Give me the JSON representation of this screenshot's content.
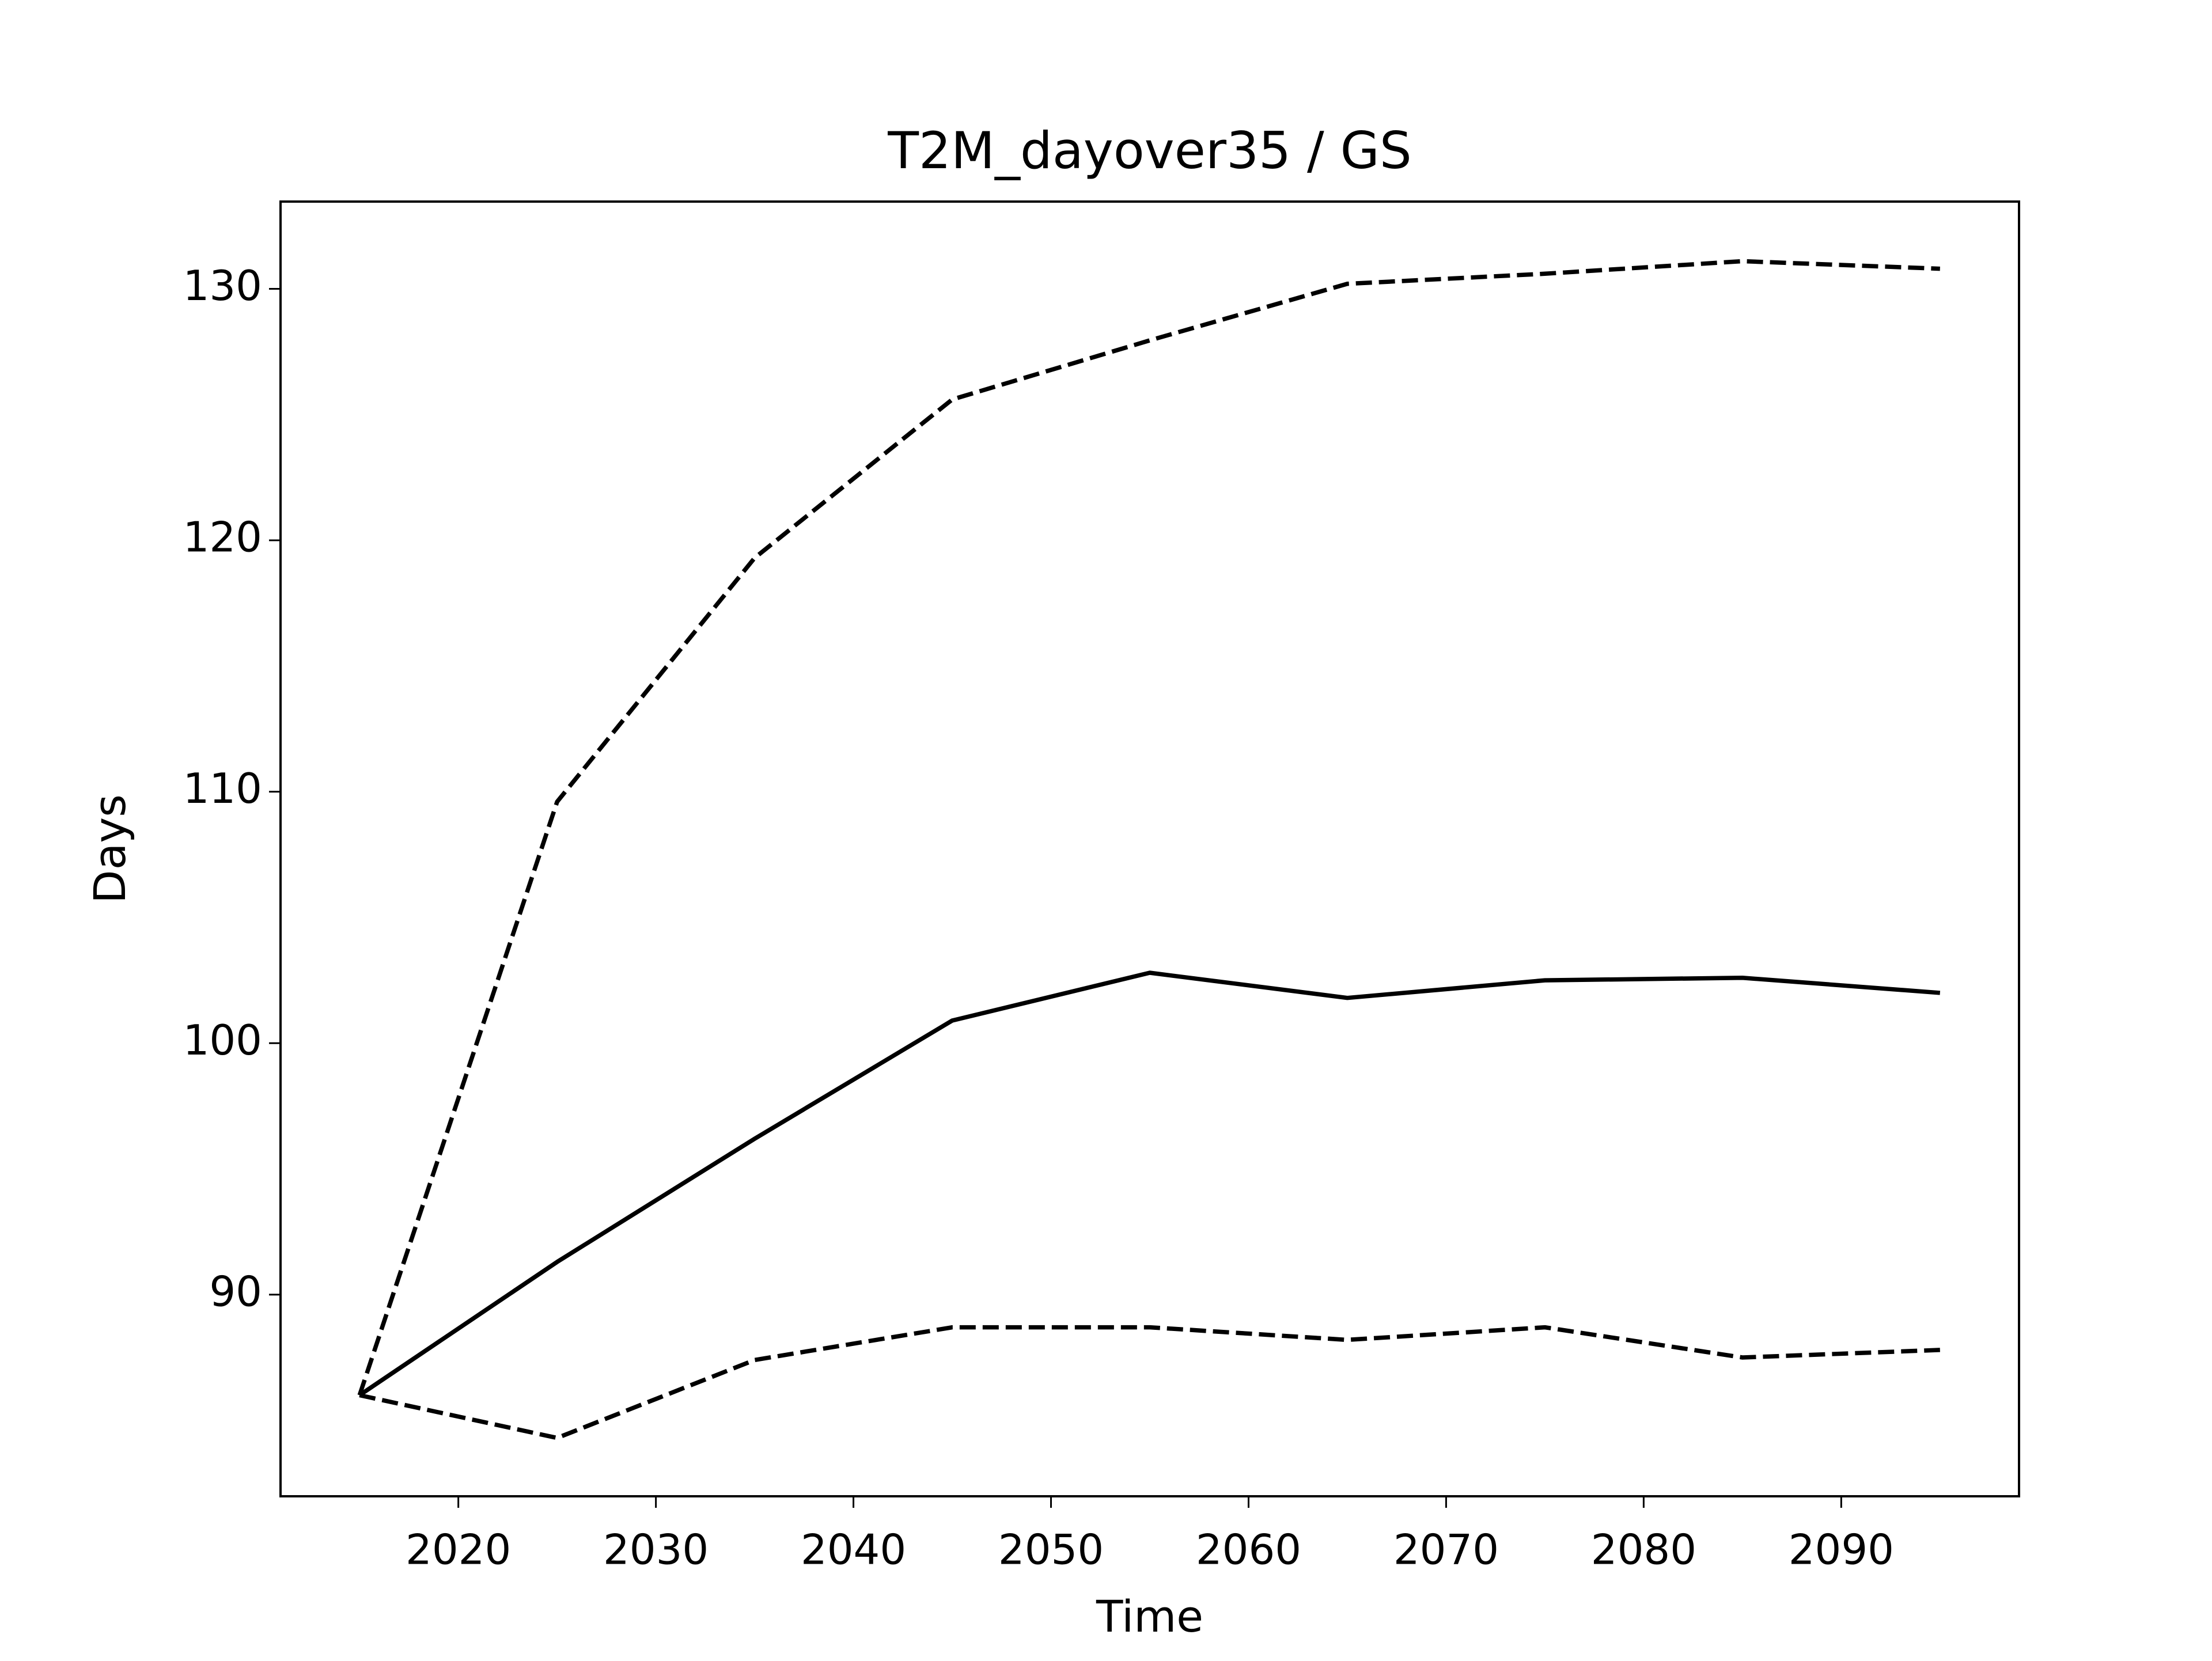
{
  "chart_data": {
    "type": "line",
    "title": "T2M_dayover35 / GS",
    "x_label": "Time",
    "y_label": "Days",
    "x": [
      2015,
      2025,
      2035,
      2045,
      2055,
      2065,
      2075,
      2085,
      2095
    ],
    "series": [
      {
        "color": "#000000",
        "linestyle": "dashed",
        "values": [
          86.0,
          109.6,
          119.3,
          125.6,
          127.95,
          130.2,
          130.6,
          131.1,
          130.8
        ]
      },
      {
        "color": "#000000",
        "linestyle": "solid",
        "values": [
          86.0,
          91.3,
          96.2,
          100.9,
          102.8,
          101.8,
          102.5,
          102.6,
          102.0
        ]
      },
      {
        "color": "#000000",
        "linestyle": "dashed",
        "values": [
          86.0,
          84.3,
          87.4,
          88.7,
          88.7,
          88.2,
          88.7,
          87.5,
          87.8
        ]
      }
    ],
    "xlim": [
      2011,
      2099
    ],
    "xticks": [
      2020,
      2030,
      2040,
      2050,
      2060,
      2070,
      2080,
      2090
    ],
    "ylim": [
      81.98,
      133.47
    ],
    "yticks": [
      90,
      100,
      110,
      120,
      130
    ],
    "grid": false
  }
}
